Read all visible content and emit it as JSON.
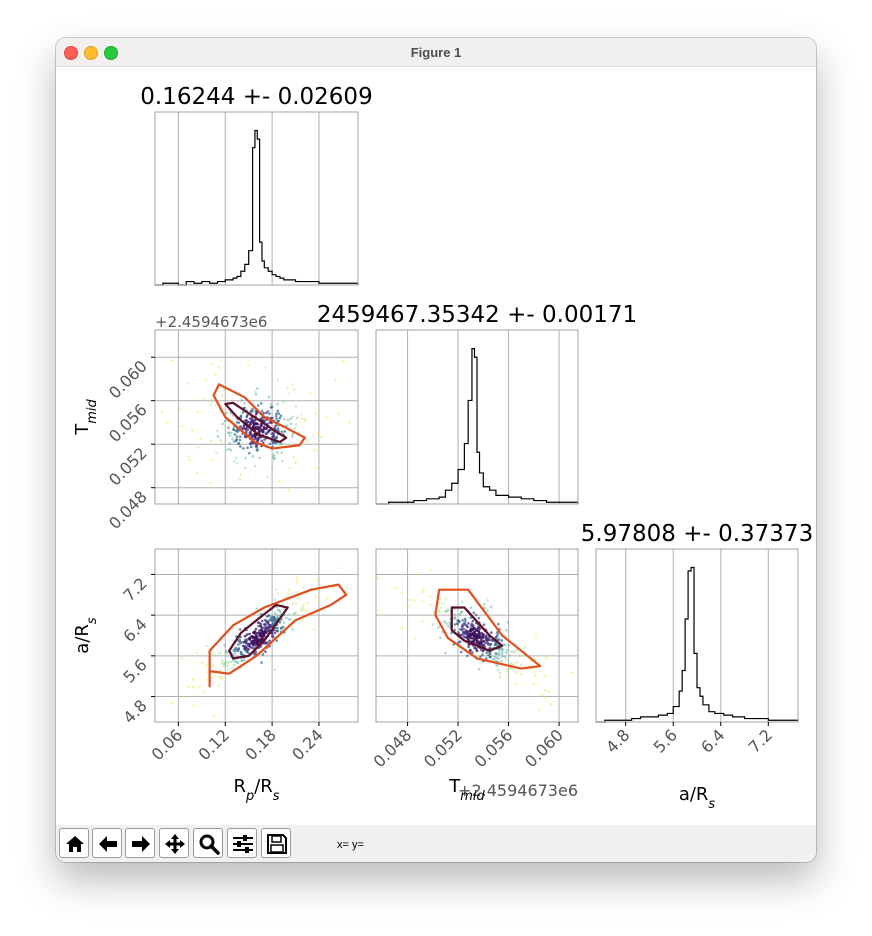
{
  "window": {
    "title": "Figure 1"
  },
  "toolbar": {
    "buttons": [
      "home-icon",
      "back-icon",
      "forward-icon",
      "pan-icon",
      "zoom-icon",
      "configure-subplots-icon",
      "save-icon"
    ],
    "coords_text": "x= y="
  },
  "chart_data": [
    {
      "type": "bar",
      "panel": "histogram",
      "title": "0.16244 +- 0.02609",
      "xlabel": "",
      "xlim": [
        0.03,
        0.29
      ],
      "xgrid": [
        0.06,
        0.12,
        0.18,
        0.24
      ],
      "bins": [
        0.03,
        0.04,
        0.05,
        0.06,
        0.07,
        0.08,
        0.09,
        0.1,
        0.11,
        0.12,
        0.125,
        0.13,
        0.135,
        0.14,
        0.145,
        0.15,
        0.155,
        0.158,
        0.161,
        0.164,
        0.167,
        0.17,
        0.175,
        0.18,
        0.185,
        0.19,
        0.195,
        0.2,
        0.21,
        0.22,
        0.23,
        0.24,
        0.25,
        0.26,
        0.27,
        0.28,
        0.29
      ],
      "counts": [
        0,
        1,
        1,
        0,
        2,
        1,
        2,
        1,
        2,
        3,
        3,
        4,
        5,
        8,
        12,
        20,
        80,
        90,
        85,
        25,
        14,
        10,
        8,
        6,
        5,
        4,
        3,
        3,
        2,
        2,
        2,
        1,
        1,
        1,
        1,
        1
      ]
    },
    {
      "type": "scatter",
      "panel": "corner-2d",
      "xlabel": "",
      "ylabel": "T_mid",
      "offset_text": "+2.4594673e6",
      "xlim": [
        0.03,
        0.29
      ],
      "ylim": [
        0.0465,
        0.0625
      ],
      "xgrid": [
        0.06,
        0.12,
        0.18,
        0.24
      ],
      "yticks": [
        0.048,
        0.052,
        0.056,
        0.06
      ],
      "ytick_labels": [
        "0.048",
        "0.052",
        "0.056",
        "0.060"
      ],
      "center": [
        0.162,
        0.05342
      ],
      "contour_1sigma": [
        [
          0.12,
          0.0557
        ],
        [
          0.135,
          0.0545
        ],
        [
          0.162,
          0.0529
        ],
        [
          0.19,
          0.0522
        ],
        [
          0.198,
          0.0526
        ],
        [
          0.184,
          0.0532
        ],
        [
          0.155,
          0.0546
        ],
        [
          0.13,
          0.0558
        ]
      ],
      "contour_2sigma": [
        [
          0.105,
          0.0565
        ],
        [
          0.12,
          0.0545
        ],
        [
          0.158,
          0.0522
        ],
        [
          0.18,
          0.0516
        ],
        [
          0.215,
          0.0519
        ],
        [
          0.222,
          0.0526
        ],
        [
          0.198,
          0.0535
        ],
        [
          0.17,
          0.0545
        ],
        [
          0.145,
          0.0563
        ],
        [
          0.112,
          0.0575
        ]
      ]
    },
    {
      "type": "bar",
      "panel": "histogram",
      "title": "2459467.35342 +- 0.00171",
      "xlim": [
        0.0455,
        0.0615
      ],
      "xgrid": [
        0.048,
        0.052,
        0.056,
        0.06
      ],
      "bins": [
        0.0455,
        0.0465,
        0.0475,
        0.0485,
        0.0495,
        0.0505,
        0.051,
        0.0515,
        0.052,
        0.0525,
        0.0528,
        0.0531,
        0.0533,
        0.0535,
        0.0537,
        0.054,
        0.0545,
        0.055,
        0.056,
        0.057,
        0.058,
        0.059,
        0.06,
        0.0615
      ],
      "counts": [
        0,
        1,
        1,
        2,
        3,
        4,
        8,
        12,
        20,
        35,
        60,
        90,
        85,
        30,
        18,
        10,
        8,
        5,
        4,
        3,
        2,
        1,
        1
      ]
    },
    {
      "type": "scatter",
      "panel": "corner-2d",
      "xlabel": "R_p/R_s",
      "ylabel": "a/R_s",
      "xlim": [
        0.03,
        0.29
      ],
      "ylim": [
        4.3,
        7.7
      ],
      "xticks": [
        0.06,
        0.12,
        0.18,
        0.24
      ],
      "xtick_labels": [
        "0.06",
        "0.12",
        "0.18",
        "0.24"
      ],
      "yticks": [
        4.8,
        5.6,
        6.4,
        7.2
      ],
      "ytick_labels": [
        "4.8",
        "5.6",
        "6.4",
        "7.2"
      ],
      "center": [
        0.162,
        5.978
      ],
      "contour_1sigma": [
        [
          0.13,
          5.55
        ],
        [
          0.15,
          5.6
        ],
        [
          0.17,
          5.9
        ],
        [
          0.2,
          6.55
        ],
        [
          0.185,
          6.6
        ],
        [
          0.16,
          6.3
        ],
        [
          0.14,
          6.05
        ],
        [
          0.125,
          5.7
        ]
      ],
      "contour_2sigma": [
        [
          0.1,
          5.0
        ],
        [
          0.1,
          5.3
        ],
        [
          0.125,
          5.25
        ],
        [
          0.16,
          5.6
        ],
        [
          0.21,
          6.3
        ],
        [
          0.255,
          6.6
        ],
        [
          0.275,
          6.8
        ],
        [
          0.265,
          7.0
        ],
        [
          0.23,
          6.9
        ],
        [
          0.17,
          6.55
        ],
        [
          0.13,
          6.2
        ],
        [
          0.1,
          5.7
        ]
      ]
    },
    {
      "type": "scatter",
      "panel": "corner-2d",
      "xlabel": "T_mid",
      "offset_text": "+2.4594673e6",
      "xlim": [
        0.0455,
        0.0615
      ],
      "ylim": [
        4.3,
        7.7
      ],
      "xticks": [
        0.048,
        0.052,
        0.056,
        0.06
      ],
      "xtick_labels": [
        "0.048",
        "0.052",
        "0.056",
        "0.060"
      ],
      "yticks": [
        4.8,
        5.6,
        6.4,
        7.2
      ],
      "center": [
        0.05342,
        5.978
      ],
      "contour_1sigma": [
        [
          0.0515,
          6.55
        ],
        [
          0.0525,
          6.55
        ],
        [
          0.0545,
          6.0
        ],
        [
          0.0555,
          5.8
        ],
        [
          0.0545,
          5.7
        ],
        [
          0.0525,
          5.9
        ],
        [
          0.0515,
          6.1
        ]
      ],
      "contour_2sigma": [
        [
          0.0505,
          6.9
        ],
        [
          0.0528,
          6.9
        ],
        [
          0.0555,
          6.0
        ],
        [
          0.0585,
          5.4
        ],
        [
          0.057,
          5.35
        ],
        [
          0.0535,
          5.55
        ],
        [
          0.0512,
          5.95
        ],
        [
          0.0502,
          6.4
        ]
      ]
    },
    {
      "type": "bar",
      "panel": "histogram",
      "title": "5.97808 +- 0.37373",
      "xlabel": "a/R_s",
      "xlim": [
        4.3,
        7.7
      ],
      "xticks": [
        4.8,
        5.6,
        6.4,
        7.2
      ],
      "xtick_labels": [
        "4.8",
        "5.6",
        "6.4",
        "7.2"
      ],
      "bins": [
        4.3,
        4.45,
        4.6,
        4.75,
        4.9,
        5.05,
        5.2,
        5.35,
        5.5,
        5.6,
        5.7,
        5.75,
        5.8,
        5.85,
        5.9,
        5.95,
        6.0,
        6.05,
        6.1,
        6.2,
        6.3,
        6.45,
        6.6,
        6.8,
        7.0,
        7.2,
        7.4,
        7.7
      ],
      "counts": [
        0,
        1,
        1,
        1,
        2,
        3,
        3,
        4,
        5,
        9,
        18,
        30,
        60,
        88,
        90,
        40,
        20,
        15,
        10,
        6,
        5,
        4,
        3,
        2,
        2,
        1,
        1
      ]
    }
  ]
}
